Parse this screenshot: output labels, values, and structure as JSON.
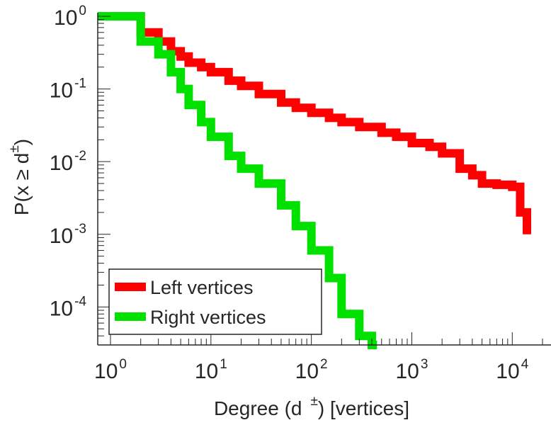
{
  "chart_data": {
    "type": "line",
    "step": true,
    "scale": {
      "x": "log",
      "y": "log"
    },
    "xlim": [
      1,
      20000
    ],
    "ylim": [
      3e-05,
      1
    ],
    "grid": false,
    "legend_position": "bottom-left",
    "xlabel": {
      "prefix": "Degree (d",
      "sup": "±",
      "suffix": ") [vertices]"
    },
    "ylabel": {
      "prefix": "P(x ≥ d",
      "sup": "±",
      "suffix": ")"
    },
    "x_ticks": [
      {
        "value": 1,
        "base": "10",
        "exp": "0"
      },
      {
        "value": 10,
        "base": "10",
        "exp": "1"
      },
      {
        "value": 100,
        "base": "10",
        "exp": "2"
      },
      {
        "value": 1000,
        "base": "10",
        "exp": "3"
      },
      {
        "value": 10000,
        "base": "10",
        "exp": "4"
      }
    ],
    "y_ticks": [
      {
        "value": 1,
        "base": "10",
        "exp": "0"
      },
      {
        "value": 0.1,
        "base": "10",
        "exp": "-1"
      },
      {
        "value": 0.01,
        "base": "10",
        "exp": "-2"
      },
      {
        "value": 0.001,
        "base": "10",
        "exp": "-3"
      },
      {
        "value": 0.0001,
        "base": "10",
        "exp": "-4"
      }
    ],
    "series": [
      {
        "name": "Left vertices",
        "color": "#ff0000",
        "x": [
          1,
          2,
          3,
          4,
          5,
          6,
          8,
          10,
          15,
          20,
          30,
          50,
          70,
          100,
          150,
          200,
          300,
          500,
          700,
          1000,
          1500,
          2000,
          3000,
          4000,
          5000,
          7000,
          10000,
          12000,
          14000
        ],
        "y": [
          1,
          0.6,
          0.45,
          0.33,
          0.28,
          0.23,
          0.2,
          0.17,
          0.13,
          0.11,
          0.085,
          0.065,
          0.055,
          0.047,
          0.04,
          0.035,
          0.03,
          0.025,
          0.022,
          0.018,
          0.016,
          0.013,
          0.008,
          0.0065,
          0.005,
          0.0048,
          0.0045,
          0.002,
          0.001
        ]
      },
      {
        "name": "Right vertices",
        "color": "#00e100",
        "x": [
          1,
          2,
          3,
          4,
          5,
          6,
          8,
          10,
          15,
          20,
          30,
          50,
          70,
          100,
          150,
          200,
          300,
          400,
          450
        ],
        "y": [
          1,
          0.45,
          0.3,
          0.17,
          0.1,
          0.06,
          0.035,
          0.022,
          0.012,
          0.008,
          0.005,
          0.0025,
          0.0013,
          0.0006,
          0.00025,
          8e-05,
          4e-05,
          3e-05,
          3e-05
        ]
      }
    ]
  }
}
